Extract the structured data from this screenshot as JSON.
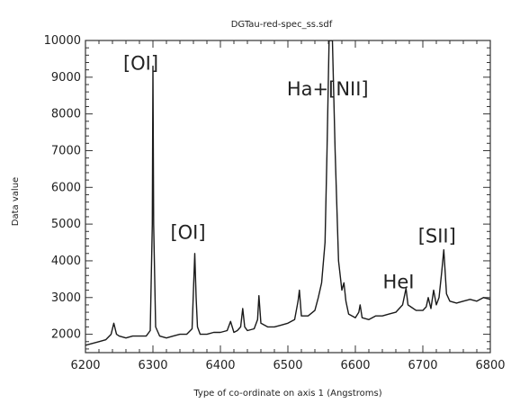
{
  "chart_data": {
    "type": "line",
    "title": "DGTau-red-spec_ss.sdf",
    "xlabel": "Type of co-ordinate on axis 1 (Angstroms)",
    "ylabel": "Data value",
    "xlim": [
      6200,
      6800
    ],
    "ylim": [
      1500,
      10000
    ],
    "xticks": [
      6200,
      6300,
      6400,
      6500,
      6600,
      6700,
      6800
    ],
    "yticks": [
      2000,
      3000,
      4000,
      5000,
      6000,
      7000,
      8000,
      9000,
      10000
    ],
    "grid": false,
    "series": [
      {
        "x": [
          6200,
          6210,
          6220,
          6230,
          6238,
          6242,
          6246,
          6250,
          6260,
          6270,
          6280,
          6290,
          6296,
          6299,
          6300,
          6301,
          6304,
          6310,
          6320,
          6330,
          6340,
          6350,
          6358,
          6362,
          6364,
          6366,
          6370,
          6380,
          6390,
          6400,
          6410,
          6415,
          6420,
          6425,
          6430,
          6433,
          6436,
          6440,
          6450,
          6455,
          6457,
          6460,
          6470,
          6480,
          6490,
          6500,
          6510,
          6515,
          6517,
          6520,
          6530,
          6540,
          6545,
          6550,
          6555,
          6558,
          6561,
          6563,
          6566,
          6570,
          6575,
          6580,
          6583,
          6586,
          6590,
          6600,
          6605,
          6607,
          6610,
          6620,
          6630,
          6640,
          6650,
          6660,
          6670,
          6675,
          6678,
          6682,
          6690,
          6700,
          6705,
          6708,
          6712,
          6716,
          6720,
          6724,
          6728,
          6731,
          6735,
          6740,
          6750,
          6760,
          6770,
          6780,
          6790,
          6800
        ],
        "y": [
          1700,
          1750,
          1800,
          1850,
          2000,
          2300,
          2000,
          1950,
          1900,
          1950,
          1950,
          1950,
          2100,
          5000,
          9300,
          5000,
          2200,
          1950,
          1900,
          1950,
          2000,
          2000,
          2150,
          4200,
          3000,
          2200,
          2000,
          2000,
          2050,
          2050,
          2100,
          2350,
          2050,
          2100,
          2200,
          2700,
          2200,
          2100,
          2150,
          2400,
          3050,
          2300,
          2200,
          2200,
          2250,
          2300,
          2400,
          2900,
          3200,
          2500,
          2500,
          2650,
          3000,
          3400,
          4500,
          7000,
          10000,
          10000,
          10000,
          7000,
          4000,
          3200,
          3400,
          2900,
          2550,
          2450,
          2600,
          2800,
          2450,
          2400,
          2500,
          2500,
          2550,
          2600,
          2800,
          3250,
          2800,
          2750,
          2650,
          2650,
          2750,
          3000,
          2700,
          3200,
          2800,
          3000,
          3700,
          4300,
          3100,
          2900,
          2850,
          2900,
          2950,
          2900,
          3000,
          2950
        ]
      }
    ],
    "annotations": [
      {
        "text": "[OI]",
        "x": 6282,
        "y": 9200
      },
      {
        "text": "[OI]",
        "x": 6352,
        "y": 4600
      },
      {
        "text": "Ha+[NII]",
        "x": 6559,
        "y": 8500
      },
      {
        "text": "HeI",
        "x": 6664,
        "y": 3250
      },
      {
        "text": "[SII]",
        "x": 6721,
        "y": 4500
      }
    ]
  },
  "colors": {
    "line": "#1a1a1a",
    "axes": "#333333",
    "text": "#222222"
  }
}
